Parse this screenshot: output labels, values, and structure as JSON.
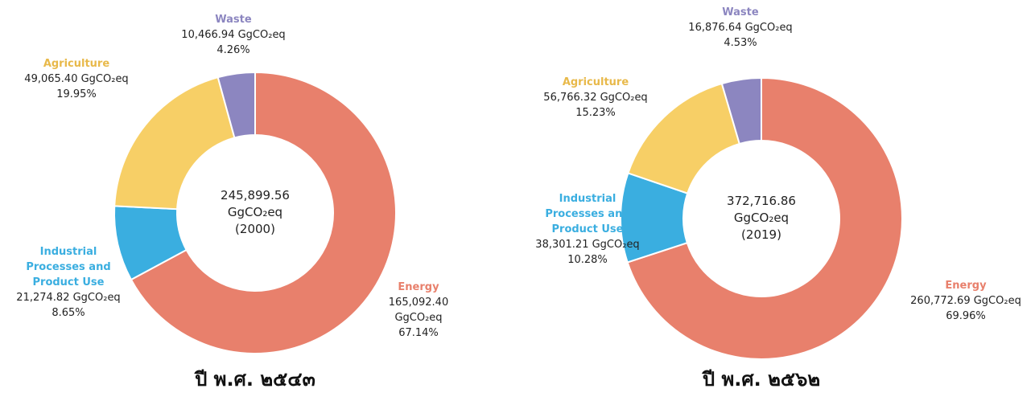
{
  "chart_data": [
    {
      "type": "donut",
      "title": "ปี พ.ศ. ๒๕๔๓",
      "center_label": [
        "245,899.56",
        "GgCO₂eq",
        "(2000)"
      ],
      "categories": [
        "Energy",
        "Industrial Processes and Product Use",
        "Agriculture",
        "Waste"
      ],
      "values": [
        165092.4,
        21274.82,
        49065.4,
        10466.94
      ],
      "value_labels": [
        "165,092.40 GgCO₂eq",
        "21,274.82 GgCO₂eq",
        "49,065.40 GgCO₂eq",
        "10,466.94 GgCO₂eq"
      ],
      "percent_labels": [
        "67.14%",
        "8.65%",
        "19.95%",
        "4.26%"
      ],
      "colors": [
        "#e8806c",
        "#3aaee0",
        "#f7cf66",
        "#8c86c0"
      ]
    },
    {
      "type": "donut",
      "title": "ปี พ.ศ. ๒๕๖๒",
      "center_label": [
        "372,716.86",
        "GgCO₂eq",
        "(2019)"
      ],
      "categories": [
        "Energy",
        "Industrial Processes and Product Use",
        "Agriculture",
        "Waste"
      ],
      "values": [
        260772.69,
        38301.21,
        56766.32,
        16876.64
      ],
      "value_labels": [
        "260,772.69 GgCO₂eq",
        "38,301.21 GgCO₂eq",
        "56,766.32 GgCO₂eq",
        "16,876.64 GgCO₂eq"
      ],
      "percent_labels": [
        "69.96%",
        "10.28%",
        "15.23%",
        "4.53%"
      ],
      "colors": [
        "#e8806c",
        "#3aaee0",
        "#f7cf66",
        "#8c86c0"
      ]
    }
  ]
}
